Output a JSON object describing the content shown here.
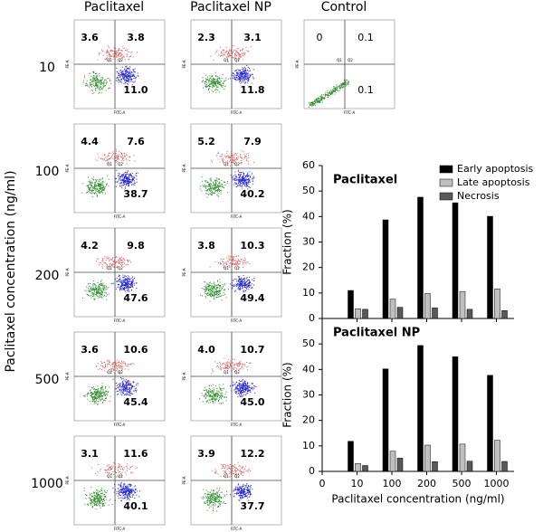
{
  "flow_panels": {
    "column_headers": [
      "Paclitaxel",
      "Paclitaxel NP",
      "Control"
    ],
    "row_labels": [
      "10",
      "100",
      "200",
      "500",
      "1000"
    ],
    "ylabel": "Paclitaxel concentration (ng/ml)",
    "axis_x_label": "FITC-A",
    "axis_y_label": "PE-A",
    "quadrant_labels": [
      "Q1",
      "Q2"
    ],
    "rows": [
      [
        {
          "ul": "3.6",
          "ur": "3.8",
          "lr": "11.0"
        },
        {
          "ul": "2.3",
          "ur": "3.1",
          "lr": "11.8"
        },
        {
          "ul": "0",
          "ur": "0.1",
          "lr": "0.1"
        }
      ],
      [
        {
          "ul": "4.4",
          "ur": "7.6",
          "lr": "38.7"
        },
        {
          "ul": "5.2",
          "ur": "7.9",
          "lr": "40.2"
        }
      ],
      [
        {
          "ul": "4.2",
          "ur": "9.8",
          "lr": "47.6"
        },
        {
          "ul": "3.8",
          "ur": "10.3",
          "lr": "49.4"
        }
      ],
      [
        {
          "ul": "3.6",
          "ur": "10.6",
          "lr": "45.4"
        },
        {
          "ul": "4.0",
          "ur": "10.7",
          "lr": "45.0"
        }
      ],
      [
        {
          "ul": "3.1",
          "ur": "11.6",
          "lr": "40.1"
        },
        {
          "ul": "3.9",
          "ur": "12.2",
          "lr": "37.7"
        }
      ]
    ]
  },
  "chart_data": {
    "type": "bar",
    "categories": [
      "0",
      "10",
      "100",
      "200",
      "500",
      "1000"
    ],
    "xlabel": "Paclitaxel concentration (ng/ml)",
    "panels": [
      {
        "title": "Paclitaxel",
        "ylabel": "Fraction (%)",
        "ylim": [
          0,
          60
        ],
        "yticks": [
          0,
          10,
          20,
          30,
          40,
          50,
          60
        ],
        "legend": "upper right",
        "series": [
          {
            "name": "Early apoptosis",
            "color": "#000000",
            "values": [
              null,
              11.0,
              38.7,
              47.6,
              45.4,
              40.1
            ]
          },
          {
            "name": "Late apoptosis",
            "color": "#bfbfbf",
            "values": [
              null,
              3.8,
              7.6,
              9.8,
              10.6,
              11.6
            ]
          },
          {
            "name": "Necrosis",
            "color": "#595959",
            "values": [
              null,
              3.6,
              4.4,
              4.2,
              3.6,
              3.1
            ]
          }
        ]
      },
      {
        "title": "Paclitaxel NP",
        "ylabel": "Fraction (%)",
        "ylim": [
          0,
          60
        ],
        "yticks": [
          0,
          10,
          20,
          30,
          40,
          50
        ],
        "legend": "none",
        "series": [
          {
            "name": "Early apoptosis",
            "color": "#000000",
            "values": [
              null,
              11.8,
              40.2,
              49.4,
              45.0,
              37.7
            ]
          },
          {
            "name": "Late apoptosis",
            "color": "#bfbfbf",
            "values": [
              null,
              3.1,
              7.9,
              10.3,
              10.7,
              12.2
            ]
          },
          {
            "name": "Necrosis",
            "color": "#595959",
            "values": [
              null,
              2.3,
              5.2,
              3.8,
              4.0,
              3.9
            ]
          }
        ]
      }
    ]
  }
}
